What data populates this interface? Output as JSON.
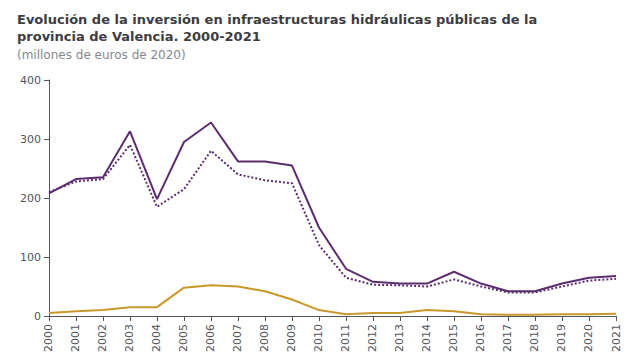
{
  "chart_data": {
    "type": "line",
    "title": "Evolución de la inversión en infraestructuras hidráulicas públicas de la\nprovincia de Valencia. 2000-2021",
    "subtitle": "(millones de euros de 2020)",
    "x": [
      2000,
      2001,
      2002,
      2003,
      2004,
      2005,
      2006,
      2007,
      2008,
      2009,
      2010,
      2011,
      2012,
      2013,
      2014,
      2015,
      2016,
      2017,
      2018,
      2019,
      2020,
      2021
    ],
    "xlim": [
      2000,
      2021
    ],
    "xticks": [
      2000,
      2001,
      2002,
      2003,
      2004,
      2005,
      2006,
      2007,
      2008,
      2009,
      2010,
      2011,
      2012,
      2013,
      2014,
      2015,
      2016,
      2017,
      2018,
      2019,
      2020,
      2021
    ],
    "series": [
      {
        "color": "#5c2d6e",
        "line_style": "solid",
        "values": [
          208,
          232,
          235,
          313,
          198,
          295,
          328,
          262,
          262,
          255,
          150,
          80,
          58,
          55,
          55,
          75,
          55,
          42,
          42,
          55,
          65,
          68
        ]
      },
      {
        "color": "#5c2d6e",
        "line_style": "dotted",
        "values": [
          210,
          228,
          232,
          290,
          185,
          215,
          280,
          240,
          230,
          225,
          120,
          65,
          53,
          52,
          50,
          62,
          50,
          40,
          40,
          50,
          60,
          63
        ]
      },
      {
        "color": "#c9982a",
        "line_style": "solid",
        "values": [
          5,
          8,
          10,
          15,
          15,
          48,
          52,
          50,
          42,
          28,
          10,
          3,
          5,
          5,
          10,
          8,
          3,
          2,
          2,
          3,
          3,
          4
        ]
      }
    ],
    "ylim": [
      0,
      400
    ],
    "yticks": [
      0,
      100,
      200,
      300,
      400
    ],
    "grid": false
  }
}
